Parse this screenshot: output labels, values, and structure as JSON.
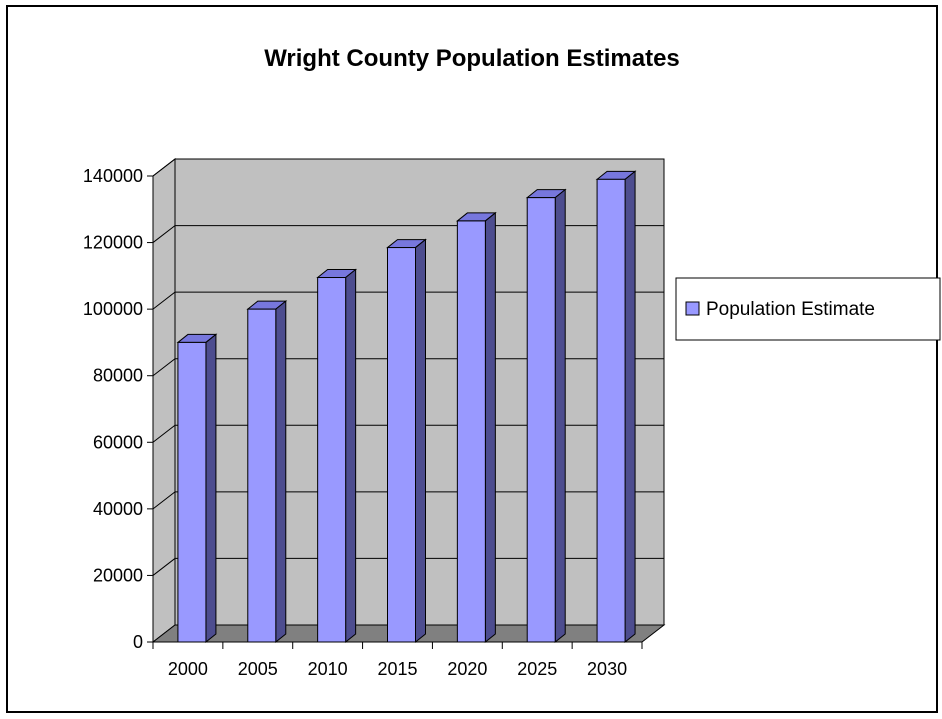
{
  "chart_data": {
    "type": "bar",
    "title": "Wright County Population Estimates",
    "categories": [
      "2000",
      "2005",
      "2010",
      "2015",
      "2020",
      "2025",
      "2030"
    ],
    "series": [
      {
        "name": "Population Estimate",
        "values": [
          90000,
          100000,
          109500,
          118500,
          126500,
          133500,
          139000
        ],
        "color": "#9999ff"
      }
    ],
    "ylim": [
      0,
      140000
    ],
    "yticks": [
      0,
      20000,
      40000,
      60000,
      80000,
      100000,
      120000,
      140000
    ],
    "grid": true,
    "legend": "right",
    "wall_color": "#c0c0c0",
    "floor_color": "#808080"
  }
}
